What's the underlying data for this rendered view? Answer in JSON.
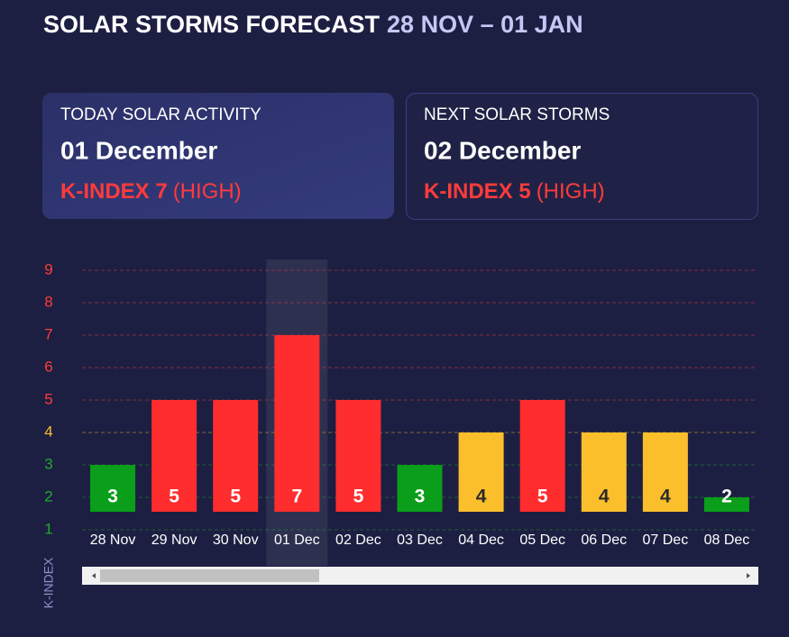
{
  "header": {
    "title": "SOLAR STORMS FORECAST",
    "range": "28 NOV – 01 JAN"
  },
  "cards": [
    {
      "label": "TODAY SOLAR ACTIVITY",
      "date": "01 December",
      "kindex": "K-INDEX 7",
      "level": "(HIGH)"
    },
    {
      "label": "NEXT SOLAR STORMS",
      "date": "02 December",
      "kindex": "K-INDEX 5",
      "level": "(HIGH)"
    }
  ],
  "chart_data": {
    "type": "bar",
    "y_label": "K-INDEX",
    "categories": [
      "28 Nov",
      "29 Nov",
      "30 Nov",
      "01 Dec",
      "02 Dec",
      "03 Dec",
      "04 Dec",
      "05 Dec",
      "06 Dec",
      "07 Dec",
      "08 Dec"
    ],
    "values": [
      3,
      5,
      5,
      7,
      5,
      3,
      4,
      5,
      4,
      4,
      2
    ],
    "colors": [
      "#0a9e1a",
      "#ff2d2d",
      "#ff2d2d",
      "#ff2d2d",
      "#ff2d2d",
      "#0a9e1a",
      "#fbbf2c",
      "#ff2d2d",
      "#fbbf2c",
      "#fbbf2c",
      "#0a9e1a"
    ],
    "highlight": "01 Dec",
    "ylim": [
      1,
      9
    ],
    "yticks": [
      1,
      2,
      3,
      4,
      5,
      6,
      7,
      8,
      9
    ],
    "ytick_colors": [
      "#1faa2a",
      "#1faa2a",
      "#1faa2a",
      "#fbbf2c",
      "#ff3b3b",
      "#ff3b3b",
      "#ff3b3b",
      "#ff3b3b",
      "#ff3b3b"
    ],
    "grid": true
  }
}
